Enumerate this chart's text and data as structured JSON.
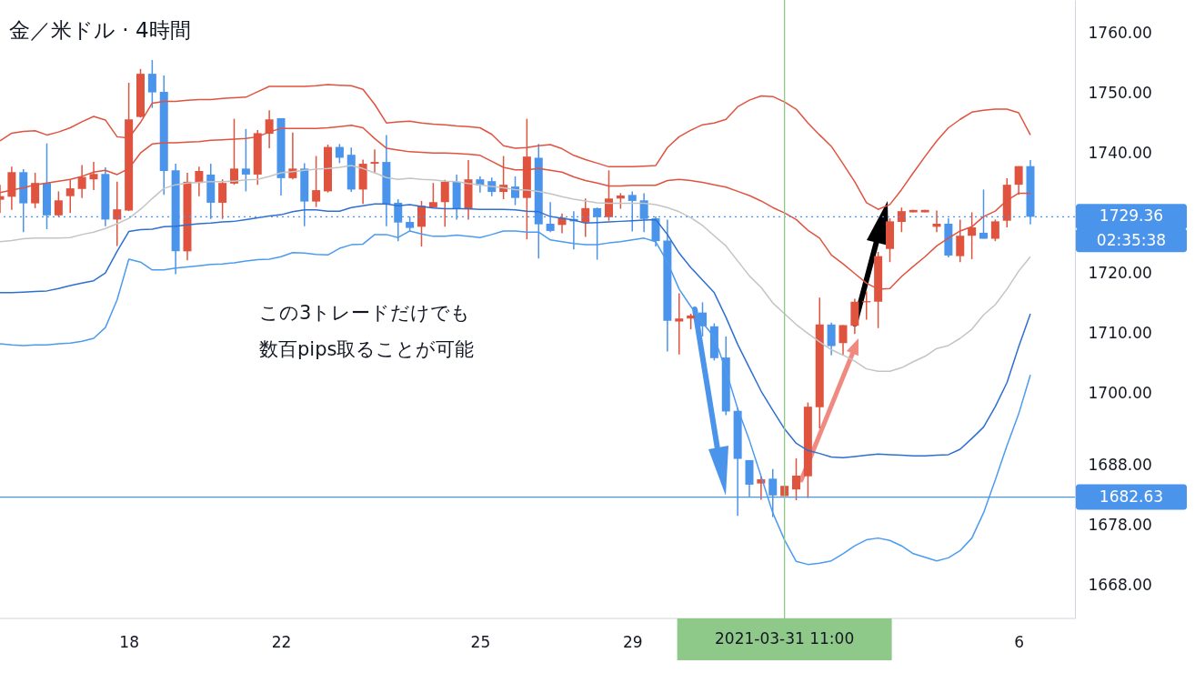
{
  "chart_data": {
    "type": "candlestick",
    "title": "金／米ドル · 4時間",
    "categories": [
      null,
      null,
      null,
      null,
      null,
      null,
      null,
      null,
      null,
      null,
      null,
      "18",
      null,
      null,
      null,
      null,
      null,
      null,
      null,
      null,
      null,
      null,
      null,
      null,
      "22",
      null,
      null,
      null,
      null,
      null,
      null,
      null,
      null,
      null,
      null,
      null,
      null,
      null,
      null,
      null,
      null,
      "25",
      null,
      null,
      null,
      null,
      null,
      null,
      null,
      null,
      null,
      null,
      null,
      null,
      "29",
      null,
      null,
      null,
      null,
      null,
      null,
      null,
      null,
      null,
      null,
      null,
      null,
      "2021-03-31  11:00",
      null,
      null,
      null,
      null,
      null,
      null,
      null,
      null,
      null,
      null,
      null,
      null,
      null,
      null,
      null,
      null,
      null,
      null,
      null,
      "6",
      null
    ],
    "ohlc": [
      [
        1732.2,
        1734.7,
        1730.0,
        1732.8
      ],
      [
        1732.7,
        1737.7,
        1730.5,
        1736.8
      ],
      [
        1736.8,
        1737.3,
        1726.8,
        1731.6
      ],
      [
        1731.6,
        1736.7,
        1730.8,
        1735.0
      ],
      [
        1735.0,
        1741.6,
        1727.3,
        1729.6
      ],
      [
        1729.6,
        1733.6,
        1729.4,
        1732.1
      ],
      [
        1732.8,
        1735.6,
        1730.0,
        1734.1
      ],
      [
        1734.0,
        1738.0,
        1732.5,
        1736.0
      ],
      [
        1735.6,
        1738.5,
        1733.8,
        1736.5
      ],
      [
        1736.5,
        1737.6,
        1727.8,
        1728.9
      ],
      [
        1728.9,
        1735.2,
        1724.5,
        1730.6
      ],
      [
        1730.4,
        1751.7,
        1730.3,
        1745.6
      ],
      [
        1746.0,
        1754.0,
        1745.9,
        1753.2
      ],
      [
        1753.2,
        1755.5,
        1747.5,
        1750.1
      ],
      [
        1750.2,
        1752.9,
        1733.0,
        1737.0
      ],
      [
        1737.1,
        1738.2,
        1719.8,
        1723.6
      ],
      [
        1723.6,
        1736.7,
        1722.1,
        1735.2
      ],
      [
        1735.0,
        1737.7,
        1732.8,
        1737.0
      ],
      [
        1736.4,
        1738.2,
        1729.0,
        1731.7
      ],
      [
        1731.7,
        1735.6,
        1729.0,
        1735.0
      ],
      [
        1734.9,
        1745.7,
        1734.7,
        1737.4
      ],
      [
        1737.4,
        1744.0,
        1733.6,
        1736.4
      ],
      [
        1736.4,
        1743.8,
        1734.7,
        1743.3
      ],
      [
        1743.2,
        1747.1,
        1740.8,
        1745.6
      ],
      [
        1745.8,
        1745.8,
        1732.9,
        1735.8
      ],
      [
        1735.8,
        1743.4,
        1735.6,
        1737.4
      ],
      [
        1737.4,
        1738.3,
        1727.8,
        1731.9
      ],
      [
        1731.9,
        1739.5,
        1731.0,
        1733.8
      ],
      [
        1733.6,
        1741.4,
        1733.4,
        1741.0
      ],
      [
        1741.0,
        1741.5,
        1738.3,
        1739.2
      ],
      [
        1739.7,
        1740.9,
        1733.5,
        1733.9
      ],
      [
        1733.9,
        1738.9,
        1731.5,
        1738.2
      ],
      [
        1738.2,
        1740.6,
        1736.6,
        1738.5
      ],
      [
        1738.5,
        1743.0,
        1727.8,
        1731.5
      ],
      [
        1731.7,
        1732.3,
        1725.3,
        1728.4
      ],
      [
        1728.5,
        1729.4,
        1727.0,
        1727.5
      ],
      [
        1727.7,
        1732.0,
        1724.4,
        1731.2
      ],
      [
        1730.9,
        1735.0,
        1730.9,
        1731.8
      ],
      [
        1731.8,
        1735.5,
        1727.7,
        1735.2
      ],
      [
        1735.2,
        1736.4,
        1728.9,
        1730.7
      ],
      [
        1730.6,
        1738.8,
        1728.9,
        1735.6
      ],
      [
        1735.6,
        1736.1,
        1733.4,
        1734.6
      ],
      [
        1735.3,
        1735.9,
        1732.8,
        1733.5
      ],
      [
        1733.5,
        1739.5,
        1732.3,
        1734.7
      ],
      [
        1734.4,
        1736.1,
        1731.3,
        1732.5
      ],
      [
        1732.5,
        1745.7,
        1725.6,
        1739.4
      ],
      [
        1739.2,
        1741.5,
        1722.4,
        1728.1
      ],
      [
        1728.2,
        1731.8,
        1726.8,
        1727.0
      ],
      [
        1728.0,
        1729.9,
        1726.6,
        1729.2
      ],
      [
        1729.0,
        1730.3,
        1723.9,
        1728.6
      ],
      [
        1728.4,
        1732.4,
        1726.0,
        1730.8
      ],
      [
        1730.8,
        1730.9,
        1722.2,
        1729.3
      ],
      [
        1729.3,
        1737.1,
        1728.7,
        1732.4
      ],
      [
        1732.4,
        1733.3,
        1730.7,
        1732.9
      ],
      [
        1733.0,
        1733.6,
        1726.9,
        1732.0
      ],
      [
        1732.1,
        1733.3,
        1726.8,
        1729.0
      ],
      [
        1729.1,
        1729.4,
        1724.4,
        1725.3
      ],
      [
        1725.4,
        1728.9,
        1706.9,
        1712.0
      ],
      [
        1711.9,
        1716.6,
        1706.4,
        1712.4
      ],
      [
        1712.4,
        1713.2,
        1710.6,
        1712.9
      ],
      [
        1713.4,
        1715.1,
        1709.4,
        1711.1
      ],
      [
        1711.1,
        1711.6,
        1705.4,
        1705.8
      ],
      [
        1705.9,
        1709.4,
        1696.3,
        1696.9
      ],
      [
        1697.0,
        1697.5,
        1679.5,
        1689.0
      ],
      [
        1688.8,
        1688.8,
        1682.6,
        1684.7
      ],
      [
        1684.9,
        1686.1,
        1682.2,
        1685.6
      ],
      [
        1685.7,
        1687.3,
        1679.3,
        1682.9
      ],
      [
        1682.8,
        1684.5,
        1682.8,
        1684.5
      ],
      [
        1683.9,
        1689.1,
        1682.1,
        1686.2
      ],
      [
        1686.1,
        1698.4,
        1682.5,
        1697.7
      ],
      [
        1697.6,
        1715.9,
        1694.1,
        1711.4
      ],
      [
        1711.4,
        1711.7,
        1706.3,
        1707.8
      ],
      [
        1708.3,
        1711.3,
        1706.3,
        1711.3
      ],
      [
        1711.2,
        1715.7,
        1709.8,
        1715.2
      ],
      [
        1715.1,
        1716.9,
        1712.2,
        1715.3
      ],
      [
        1715.2,
        1723.5,
        1710.8,
        1722.8
      ],
      [
        1724.0,
        1729.1,
        1721.8,
        1728.6
      ],
      [
        1728.5,
        1730.9,
        1726.8,
        1730.3
      ],
      [
        1730.1,
        1730.5,
        1730.1,
        1730.5
      ],
      [
        1730.1,
        1730.5,
        1730.1,
        1730.5
      ],
      [
        1727.7,
        1730.4,
        1726.8,
        1728.2
      ],
      [
        1728.2,
        1729.1,
        1722.6,
        1722.9
      ],
      [
        1722.8,
        1728.9,
        1721.8,
        1726.2
      ],
      [
        1726.2,
        1730.1,
        1722.3,
        1727.6
      ],
      [
        1726.7,
        1733.9,
        1725.7,
        1725.7
      ],
      [
        1725.7,
        1728.9,
        1725.3,
        1728.6
      ],
      [
        1728.7,
        1735.8,
        1727.6,
        1734.7
      ],
      [
        1734.7,
        1737.8,
        1733.0,
        1737.8
      ],
      [
        1737.8,
        1738.8,
        1728.1,
        1729.36
      ]
    ],
    "colors": [
      "#e0533f",
      "#e0533f",
      "#4a94eb",
      "#e0533f",
      "#4a94eb",
      "#e0533f",
      "#e0533f",
      "#e0533f",
      "#e0533f",
      "#4a94eb",
      "#e0533f",
      "#e0533f",
      "#e0533f",
      "#4a94eb",
      "#4a94eb",
      "#4a94eb",
      "#e0533f",
      "#e0533f",
      "#4a94eb",
      "#e0533f",
      "#e0533f",
      "#4a94eb",
      "#e0533f",
      "#e0533f",
      "#4a94eb",
      "#e0533f",
      "#4a94eb",
      "#e0533f",
      "#e0533f",
      "#4a94eb",
      "#4a94eb",
      "#e0533f",
      "#e0533f",
      "#4a94eb",
      "#4a94eb",
      "#4a94eb",
      "#e0533f",
      "#e0533f",
      "#e0533f",
      "#4a94eb",
      "#e0533f",
      "#4a94eb",
      "#4a94eb",
      "#e0533f",
      "#4a94eb",
      "#e0533f",
      "#4a94eb",
      "#4a94eb",
      "#e0533f",
      "#4a94eb",
      "#e0533f",
      "#4a94eb",
      "#e0533f",
      "#e0533f",
      "#4a94eb",
      "#4a94eb",
      "#4a94eb",
      "#4a94eb",
      "#e0533f",
      "#e0533f",
      "#4a94eb",
      "#4a94eb",
      "#4a94eb",
      "#4a94eb",
      "#4a94eb",
      "#e0533f",
      "#4a94eb",
      "#e0533f",
      "#e0533f",
      "#e0533f",
      "#e0533f",
      "#4a94eb",
      "#e0533f",
      "#e0533f",
      "#e0533f",
      "#e0533f",
      "#e0533f",
      "#e0533f",
      "#e0533f",
      "#e0533f",
      "#e0533f",
      "#4a94eb",
      "#e0533f",
      "#e0533f",
      "#4a94eb",
      "#e0533f",
      "#e0533f",
      "#e0533f",
      "#4a94eb"
    ],
    "series": [
      {
        "type": "line",
        "color": "#e0533f",
        "values": [
          1742.0,
          1743.3,
          1743.6,
          1743.7,
          1743.0,
          1743.5,
          1744.2,
          1745.2,
          1746.1,
          1745.5,
          1742.7,
          1742.5,
          1745.1,
          1748.3,
          1748.6,
          1748.6,
          1748.8,
          1748.9,
          1748.9,
          1749.1,
          1749.2,
          1749.3,
          1750.2,
          1751.1,
          1751.1,
          1751.1,
          1751.1,
          1751.2,
          1751.4,
          1751.3,
          1751.2,
          1750.6,
          1748.1,
          1745.0,
          1745.2,
          1745.3,
          1745.0,
          1744.8,
          1744.7,
          1744.5,
          1744.4,
          1744.2,
          1743.1,
          1741.2,
          1740.8,
          1740.9,
          1741.2,
          1741.4,
          1740.7,
          1739.6,
          1738.9,
          1738.3,
          1737.7,
          1737.7,
          1737.7,
          1737.8,
          1737.9,
          1740.9,
          1742.7,
          1743.8,
          1744.7,
          1745.0,
          1745.6,
          1747.7,
          1748.8,
          1749.5,
          1749.4,
          1748.5,
          1747.3,
          1745.0,
          1743.0,
          1741.1,
          1738.2,
          1735.2,
          1731.7,
          1730.6,
          1731.4,
          1733.9,
          1736.7,
          1739.4,
          1742.0,
          1744.2,
          1745.6,
          1746.8,
          1747.1,
          1747.3,
          1747.3,
          1746.7,
          1743.0
        ]
      },
      {
        "type": "line",
        "color": "#e0533f",
        "values": [
          1733.4,
          1733.8,
          1734.2,
          1734.7,
          1735.0,
          1735.3,
          1735.6,
          1736.1,
          1736.8,
          1737.1,
          1736.4,
          1737.4,
          1740.0,
          1741.5,
          1741.7,
          1741.7,
          1741.8,
          1741.9,
          1742.1,
          1742.2,
          1742.3,
          1742.4,
          1742.7,
          1743.5,
          1744.1,
          1744.1,
          1744.1,
          1744.1,
          1744.2,
          1744.4,
          1744.6,
          1744.2,
          1742.4,
          1740.8,
          1740.5,
          1740.2,
          1740.1,
          1740.0,
          1740.0,
          1739.9,
          1739.8,
          1739.6,
          1738.6,
          1737.6,
          1737.2,
          1737.2,
          1737.4,
          1737.1,
          1736.8,
          1736.0,
          1735.4,
          1735.0,
          1734.5,
          1734.5,
          1734.6,
          1734.6,
          1734.6,
          1735.4,
          1735.6,
          1735.4,
          1735.1,
          1734.7,
          1734.3,
          1733.6,
          1732.9,
          1732.0,
          1730.9,
          1730.0,
          1728.9,
          1727.1,
          1725.8,
          1723.0,
          1721.5,
          1719.9,
          1718.3,
          1717.3,
          1717.4,
          1719.4,
          1721.1,
          1722.7,
          1724.5,
          1725.8,
          1727.0,
          1727.7,
          1729.4,
          1730.3,
          1732.1,
          1733.3,
          1733.3
        ]
      },
      {
        "type": "line",
        "color": "#c4c4c4",
        "values": [
          1725.2,
          1725.4,
          1725.7,
          1725.8,
          1725.8,
          1725.8,
          1725.9,
          1726.4,
          1726.8,
          1727.4,
          1728.2,
          1729.1,
          1730.6,
          1732.4,
          1734.1,
          1734.7,
          1735.0,
          1735.1,
          1735.2,
          1735.2,
          1735.3,
          1735.5,
          1735.6,
          1736.1,
          1736.7,
          1736.9,
          1737.1,
          1737.3,
          1737.4,
          1737.6,
          1737.9,
          1737.4,
          1736.7,
          1735.9,
          1735.6,
          1735.8,
          1735.6,
          1735.5,
          1735.3,
          1735.2,
          1734.9,
          1734.7,
          1734.4,
          1734.2,
          1733.9,
          1733.8,
          1733.6,
          1733.2,
          1732.7,
          1732.3,
          1732.0,
          1731.7,
          1731.6,
          1731.6,
          1731.6,
          1731.6,
          1731.4,
          1730.9,
          1730.2,
          1729.2,
          1727.9,
          1726.2,
          1724.5,
          1722.0,
          1719.5,
          1717.6,
          1715.0,
          1713.2,
          1711.4,
          1709.9,
          1708.5,
          1707.2,
          1706.3,
          1705.3,
          1704.0,
          1703.6,
          1703.6,
          1704.2,
          1705.2,
          1706.1,
          1707.4,
          1707.9,
          1709.1,
          1710.6,
          1713.0,
          1714.7,
          1717.3,
          1720.3,
          1722.7
        ]
      },
      {
        "type": "line",
        "color": "#2f6fd0",
        "values": [
          1716.7,
          1716.7,
          1716.8,
          1716.9,
          1717.0,
          1717.4,
          1717.9,
          1718.3,
          1718.7,
          1720.0,
          1723.6,
          1726.9,
          1727.2,
          1727.3,
          1727.7,
          1727.8,
          1728.0,
          1728.2,
          1728.3,
          1728.5,
          1728.6,
          1728.9,
          1729.2,
          1729.5,
          1729.7,
          1730.2,
          1730.5,
          1730.5,
          1730.3,
          1730.3,
          1730.9,
          1731.2,
          1731.5,
          1731.5,
          1731.2,
          1731.4,
          1731.1,
          1730.8,
          1730.7,
          1730.7,
          1730.7,
          1730.6,
          1730.6,
          1730.6,
          1730.5,
          1730.3,
          1730.2,
          1729.4,
          1729.1,
          1728.8,
          1728.3,
          1728.4,
          1728.5,
          1728.6,
          1728.7,
          1728.8,
          1728.9,
          1726.4,
          1723.3,
          1720.9,
          1718.8,
          1716.7,
          1712.6,
          1708.1,
          1704.2,
          1700.3,
          1697.1,
          1694.0,
          1691.6,
          1690.4,
          1689.9,
          1689.3,
          1689.2,
          1689.4,
          1689.6,
          1689.8,
          1689.7,
          1689.6,
          1689.5,
          1689.5,
          1689.6,
          1689.7,
          1690.6,
          1692.4,
          1694.3,
          1697.7,
          1701.7,
          1707.7,
          1713.2
        ]
      },
      {
        "type": "line",
        "color": "#4b9bf0",
        "values": [
          1708.2,
          1708.0,
          1707.9,
          1708.0,
          1708.0,
          1708.2,
          1708.3,
          1708.6,
          1709.1,
          1710.9,
          1715.5,
          1722.3,
          1721.8,
          1720.5,
          1720.5,
          1720.8,
          1721.0,
          1721.2,
          1721.4,
          1721.5,
          1721.7,
          1722.0,
          1722.2,
          1722.3,
          1722.7,
          1723.4,
          1723.3,
          1723.1,
          1723.0,
          1724.1,
          1724.7,
          1724.8,
          1726.4,
          1726.4,
          1725.9,
          1727.0,
          1726.5,
          1726.1,
          1726.1,
          1726.3,
          1726.1,
          1725.9,
          1726.4,
          1727.0,
          1727.0,
          1726.8,
          1726.8,
          1725.5,
          1725.2,
          1724.9,
          1724.7,
          1724.7,
          1725.0,
          1725.2,
          1725.5,
          1725.8,
          1725.2,
          1721.8,
          1717.3,
          1714.4,
          1711.7,
          1709.3,
          1703.7,
          1697.4,
          1692.1,
          1686.1,
          1680.0,
          1675.5,
          1671.9,
          1671.4,
          1671.6,
          1672.0,
          1673.2,
          1674.5,
          1675.5,
          1675.8,
          1675.4,
          1674.5,
          1673.2,
          1672.6,
          1672.0,
          1672.5,
          1673.7,
          1675.8,
          1680.0,
          1685.5,
          1691.2,
          1696.5,
          1703.0
        ]
      }
    ],
    "ylim": [
      1662.4,
      1765.5
    ],
    "yticks": [
      {
        "value": 1760,
        "label": "1760.00"
      },
      {
        "value": 1750,
        "label": "1750.00"
      },
      {
        "value": 1740,
        "label": "1740.00"
      },
      {
        "value": 1720,
        "label": "1720.00"
      },
      {
        "value": 1710,
        "label": "1710.00"
      },
      {
        "value": 1700,
        "label": "1700.00"
      },
      {
        "value": 1688,
        "label": "1688.00"
      },
      {
        "value": 1678,
        "label": "1678.00"
      },
      {
        "value": 1668,
        "label": "1668.00"
      }
    ],
    "ref_lines": [
      {
        "axis": "y",
        "value": 1729.36,
        "label": "1729.36",
        "color": "#4a94eb",
        "line_style": "dotted"
      },
      {
        "axis": "y",
        "value": 1682.63,
        "label": "1682.63",
        "color": "#4a94eb",
        "line_style": "solid"
      },
      {
        "axis": "x",
        "value": "2021-03-31  11:00",
        "color": "#8fc98a",
        "line_style": "solid"
      }
    ],
    "annotations": [
      "この3トレードだけでも",
      "数百pips取ることが可能",
      "02:35:38"
    ]
  }
}
